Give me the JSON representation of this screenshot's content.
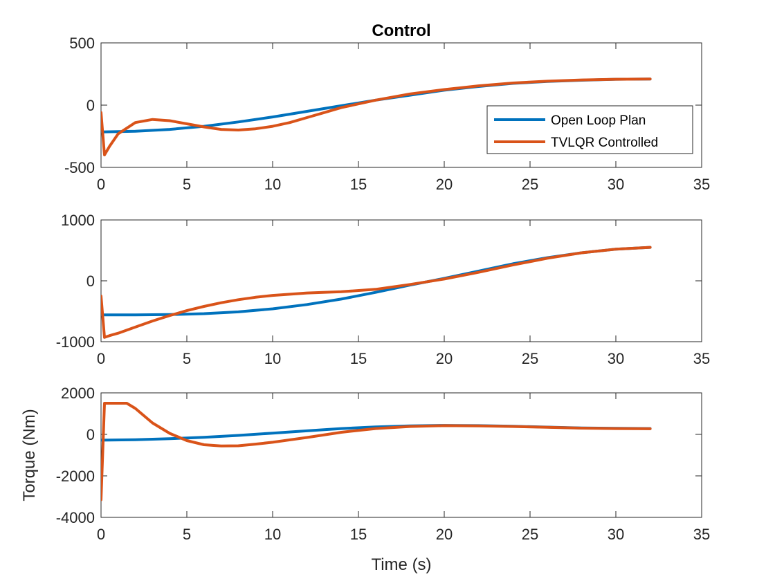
{
  "chart_data": [
    {
      "type": "line",
      "title": "Control",
      "xlabel": "",
      "ylabel": "",
      "xlim": [
        0,
        35
      ],
      "ylim": [
        -500,
        500
      ],
      "xticks": [
        0,
        5,
        10,
        15,
        20,
        25,
        30,
        35
      ],
      "yticks": [
        -500,
        0,
        500
      ],
      "legend": {
        "show": true,
        "position": "middle-right"
      },
      "series": [
        {
          "name": "Open Loop Plan",
          "color": "#0072BD",
          "x": [
            0,
            2,
            4,
            6,
            8,
            10,
            12,
            14,
            16,
            18,
            20,
            22,
            24,
            26,
            28,
            30,
            32
          ],
          "y": [
            -215,
            -210,
            -195,
            -170,
            -135,
            -95,
            -50,
            -5,
            40,
            80,
            120,
            150,
            175,
            190,
            200,
            208,
            210
          ]
        },
        {
          "name": "TVLQR Controlled",
          "color": "#D95319",
          "x": [
            0,
            0.2,
            0.5,
            1,
            2,
            3,
            4,
            5,
            6,
            7,
            8,
            9,
            10,
            11,
            12,
            13,
            14,
            15,
            16,
            18,
            20,
            22,
            24,
            26,
            28,
            30,
            32
          ],
          "y": [
            -60,
            -400,
            -330,
            -230,
            -140,
            -115,
            -125,
            -150,
            -175,
            -195,
            -200,
            -190,
            -170,
            -140,
            -100,
            -60,
            -20,
            10,
            40,
            90,
            125,
            155,
            178,
            192,
            202,
            208,
            210
          ]
        }
      ]
    },
    {
      "type": "line",
      "title": "",
      "xlabel": "",
      "ylabel": "",
      "xlim": [
        0,
        35
      ],
      "ylim": [
        -1000,
        1000
      ],
      "xticks": [
        0,
        5,
        10,
        15,
        20,
        25,
        30,
        35
      ],
      "yticks": [
        -1000,
        0,
        1000
      ],
      "series": [
        {
          "name": "Open Loop Plan",
          "color": "#0072BD",
          "x": [
            0,
            2,
            4,
            6,
            8,
            10,
            12,
            14,
            16,
            18,
            20,
            22,
            24,
            26,
            28,
            30,
            32
          ],
          "y": [
            -560,
            -560,
            -555,
            -540,
            -510,
            -460,
            -390,
            -300,
            -190,
            -70,
            40,
            160,
            280,
            380,
            460,
            520,
            550
          ]
        },
        {
          "name": "TVLQR Controlled",
          "color": "#D95319",
          "x": [
            0,
            0.2,
            0.5,
            1,
            2,
            3,
            4,
            5,
            6,
            7,
            8,
            9,
            10,
            12,
            14,
            16,
            18,
            20,
            22,
            24,
            26,
            28,
            30,
            32
          ],
          "y": [
            -250,
            -930,
            -900,
            -860,
            -760,
            -660,
            -570,
            -490,
            -420,
            -360,
            -310,
            -270,
            -240,
            -200,
            -180,
            -140,
            -60,
            30,
            140,
            260,
            370,
            460,
            520,
            550
          ]
        }
      ]
    },
    {
      "type": "line",
      "title": "",
      "xlabel": "Time (s)",
      "ylabel": "Torque (Nm)",
      "xlim": [
        0,
        35
      ],
      "ylim": [
        -4000,
        2000
      ],
      "xticks": [
        0,
        5,
        10,
        15,
        20,
        25,
        30,
        35
      ],
      "yticks": [
        -4000,
        -2000,
        0,
        2000
      ],
      "series": [
        {
          "name": "Open Loop Plan",
          "color": "#0072BD",
          "x": [
            0,
            2,
            4,
            6,
            8,
            10,
            12,
            14,
            16,
            18,
            20,
            22,
            24,
            26,
            28,
            30,
            32
          ],
          "y": [
            -280,
            -260,
            -210,
            -140,
            -50,
            60,
            170,
            280,
            360,
            410,
            430,
            420,
            390,
            350,
            310,
            290,
            280
          ]
        },
        {
          "name": "TVLQR Controlled",
          "color": "#D95319",
          "x": [
            0,
            0.2,
            0.5,
            1,
            1.5,
            2,
            3,
            4,
            5,
            6,
            7,
            8,
            9,
            10,
            12,
            14,
            16,
            18,
            20,
            22,
            24,
            26,
            28,
            30,
            32
          ],
          "y": [
            -3150,
            1500,
            1500,
            1500,
            1500,
            1250,
            550,
            50,
            -300,
            -500,
            -560,
            -550,
            -470,
            -380,
            -150,
            100,
            280,
            380,
            420,
            410,
            380,
            340,
            300,
            280,
            270
          ]
        }
      ]
    }
  ]
}
